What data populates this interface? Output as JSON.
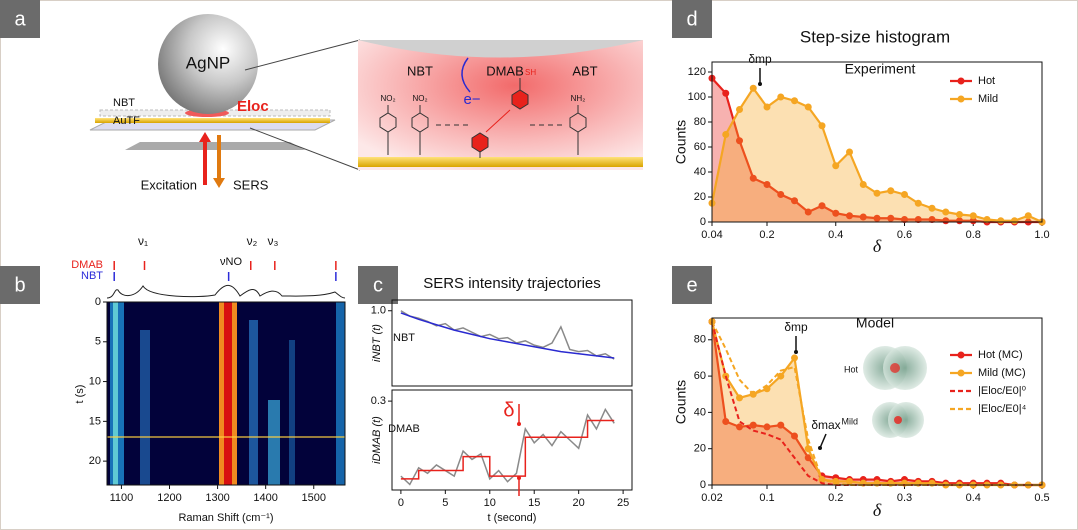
{
  "panel_labels": [
    "a",
    "b",
    "c",
    "d",
    "e"
  ],
  "diagram": {
    "particle": "AgNP",
    "layer_1": "NBT",
    "layer_2": "AuTF",
    "field": "Eloc",
    "excitation": "Excitation",
    "sers": "SERS",
    "molecule_1": "NBT",
    "molecule_2": "DMAB",
    "molecule_3": "ABT",
    "electron": "e−",
    "group_1": "NO₂",
    "group_2": "NO₂",
    "group_3": "SH",
    "group_4": "NH₂"
  },
  "chart_data": [
    {
      "type": "heatmap",
      "xlabel": "Raman Shift (cm⁻¹)",
      "ylabel": "t (s)",
      "xlim": [
        1070,
        1565
      ],
      "xticks": [
        1100,
        1200,
        1300,
        1400,
        1500
      ],
      "ylim": [
        0,
        23
      ],
      "yticks": [
        0,
        5,
        10,
        15,
        20
      ],
      "y_inverted": true,
      "series": [
        {
          "name": "DMAB",
          "color": "#e8221c",
          "values": [
            1085,
            1148,
            1369,
            1419,
            1546
          ]
        },
        {
          "name": "NBT",
          "color": "#2b2bd9",
          "values": [
            1085,
            1323,
            1546
          ]
        }
      ],
      "annotations": [
        "ν₁",
        "νNO",
        "ν₂",
        "ν₃"
      ]
    },
    {
      "type": "line",
      "title": "SERS intensity trajectories",
      "ylabel": "iNBT (t)",
      "xlim": [
        -1,
        26
      ],
      "ylim": [
        0.3,
        1.1
      ],
      "yticks": [
        {
          "value": 1,
          "label": "1.0"
        }
      ],
      "series": [
        {
          "color": "#8a8a8a",
          "x": [
            0,
            1,
            2,
            3,
            4,
            5,
            6,
            7,
            8,
            9,
            10,
            11,
            12,
            13,
            14,
            15,
            16,
            17,
            18,
            19,
            20,
            21,
            22,
            23,
            24
          ],
          "values": [
            1.0,
            0.95,
            0.93,
            0.9,
            0.86,
            0.88,
            0.82,
            0.84,
            0.8,
            0.76,
            0.78,
            0.74,
            0.75,
            0.7,
            0.72,
            0.68,
            0.66,
            0.7,
            0.85,
            0.64,
            0.62,
            0.63,
            0.58,
            0.6,
            0.55
          ]
        },
        {
          "color": "#2a2ad0",
          "x": [
            0,
            2,
            4,
            6,
            8,
            10,
            12,
            14,
            16,
            18,
            20,
            22,
            24
          ],
          "values": [
            0.98,
            0.92,
            0.87,
            0.82,
            0.78,
            0.74,
            0.71,
            0.68,
            0.65,
            0.62,
            0.6,
            0.58,
            0.56
          ]
        }
      ],
      "annotations": [
        "NBT"
      ]
    },
    {
      "type": "line",
      "xlabel": "t (second)",
      "ylabel": "iDMAB (t)",
      "xlim": [
        -1,
        26
      ],
      "xticks": [
        0,
        5,
        10,
        15,
        20,
        25
      ],
      "ylim": [
        -0.02,
        0.34
      ],
      "yticks": [
        0.3
      ],
      "series": [
        {
          "color": "#8a8a8a",
          "x": [
            0,
            1,
            2,
            3,
            4,
            5,
            6,
            7,
            8,
            9,
            10,
            11,
            12,
            13,
            14,
            15,
            16,
            17,
            18,
            19,
            20,
            21,
            22,
            23,
            24
          ],
          "values": [
            0.03,
            0.0,
            0.06,
            0.04,
            0.07,
            0.05,
            0.03,
            0.12,
            0.09,
            0.11,
            0.02,
            0.05,
            0.01,
            0.04,
            0.2,
            0.15,
            0.18,
            0.14,
            0.19,
            0.16,
            0.13,
            0.25,
            0.2,
            0.27,
            0.22
          ]
        },
        {
          "color": "#e8221c",
          "step": true,
          "x": [
            0,
            1,
            2,
            3,
            4,
            5,
            6,
            7,
            8,
            9,
            10,
            11,
            12,
            13,
            14,
            15,
            16,
            17,
            18,
            19,
            20,
            21,
            22,
            23,
            24
          ],
          "values": [
            0.02,
            0.02,
            0.05,
            0.05,
            0.05,
            0.05,
            0.05,
            0.1,
            0.1,
            0.1,
            0.03,
            0.03,
            0.03,
            0.03,
            0.17,
            0.17,
            0.17,
            0.17,
            0.17,
            0.17,
            0.17,
            0.23,
            0.23,
            0.23,
            0.23
          ]
        }
      ],
      "annotations": [
        "DMAB",
        "δ"
      ]
    },
    {
      "type": "line",
      "title": "Step-size histogram",
      "xlabel": "δ",
      "ylabel": "Counts",
      "fill": true,
      "markers": true,
      "xlim": [
        0.04,
        1.0
      ],
      "xticks": [
        0.04,
        0.2,
        0.4,
        0.6,
        0.8,
        {
          "value": 1,
          "label": "1.0"
        }
      ],
      "ylim": [
        0,
        128
      ],
      "yticks": [
        0,
        20,
        40,
        60,
        80,
        100,
        120
      ],
      "x": [
        0.04,
        0.08,
        0.12,
        0.16,
        0.2,
        0.24,
        0.28,
        0.32,
        0.36,
        0.4,
        0.44,
        0.48,
        0.52,
        0.56,
        0.6,
        0.64,
        0.68,
        0.72,
        0.76,
        0.8,
        0.84,
        0.88,
        0.92,
        0.96,
        1.0
      ],
      "series": [
        {
          "name": "Hot",
          "color": "#e8221c",
          "values": [
            115,
            103,
            65,
            35,
            30,
            22,
            17,
            8,
            13,
            7,
            5,
            4,
            3,
            3,
            2,
            2,
            2,
            1,
            1,
            1,
            0,
            0,
            0,
            0,
            0
          ]
        },
        {
          "name": "Mild",
          "color": "#f5a623",
          "values": [
            15,
            70,
            90,
            107,
            92,
            100,
            97,
            92,
            77,
            45,
            56,
            30,
            23,
            25,
            22,
            15,
            11,
            8,
            6,
            5,
            2,
            1,
            1,
            5,
            0
          ]
        }
      ],
      "annotations": [
        "δmp",
        "Experiment"
      ]
    },
    {
      "type": "line",
      "xlabel": "δ",
      "ylabel": "Counts",
      "fill": true,
      "markers": true,
      "xlim": [
        0.02,
        0.5
      ],
      "xticks": [
        0.02,
        0.1,
        0.2,
        0.3,
        0.4,
        0.5
      ],
      "ylim": [
        0,
        92
      ],
      "yticks": [
        0,
        20,
        40,
        60,
        80
      ],
      "x": [
        0.02,
        0.04,
        0.06,
        0.08,
        0.1,
        0.12,
        0.14,
        0.16,
        0.18,
        0.2,
        0.22,
        0.24,
        0.26,
        0.28,
        0.3,
        0.32,
        0.34,
        0.36,
        0.38,
        0.4,
        0.42,
        0.44,
        0.46,
        0.48,
        0.5
      ],
      "series": [
        {
          "name": "Hot (MC)",
          "color": "#e8221c",
          "values": [
            90,
            35,
            32,
            33,
            32,
            33,
            27,
            15,
            5,
            4,
            3,
            3,
            3,
            2,
            3,
            2,
            2,
            1,
            1,
            1,
            1,
            1,
            0,
            0,
            0
          ]
        },
        {
          "name": "Mild (MC)",
          "color": "#f5a623",
          "values": [
            90,
            60,
            48,
            50,
            53,
            60,
            70,
            20,
            3,
            2,
            2,
            1,
            1,
            1,
            1,
            1,
            1,
            0,
            0,
            0,
            0,
            0,
            0,
            0,
            0
          ]
        },
        {
          "name": "|Eloc/E0|⁰",
          "color": "#e8221c",
          "dash": true,
          "values": [
            90,
            60,
            35,
            30,
            28,
            25,
            15,
            5,
            1,
            0,
            0,
            0,
            0,
            0,
            0,
            0,
            0,
            0,
            0,
            0,
            0,
            0,
            0,
            0,
            0
          ]
        },
        {
          "name": "|Eloc/E0|⁴",
          "color": "#f5a623",
          "dash": true,
          "values": [
            90,
            75,
            58,
            50,
            55,
            63,
            65,
            25,
            3,
            1,
            0,
            0,
            0,
            0,
            0,
            0,
            0,
            0,
            0,
            0,
            0,
            0,
            0,
            0,
            0
          ]
        }
      ],
      "annotations": [
        "Model",
        "δmp",
        "δmax"
      ],
      "inset_labels": [
        "Hot",
        "Mild"
      ]
    }
  ]
}
